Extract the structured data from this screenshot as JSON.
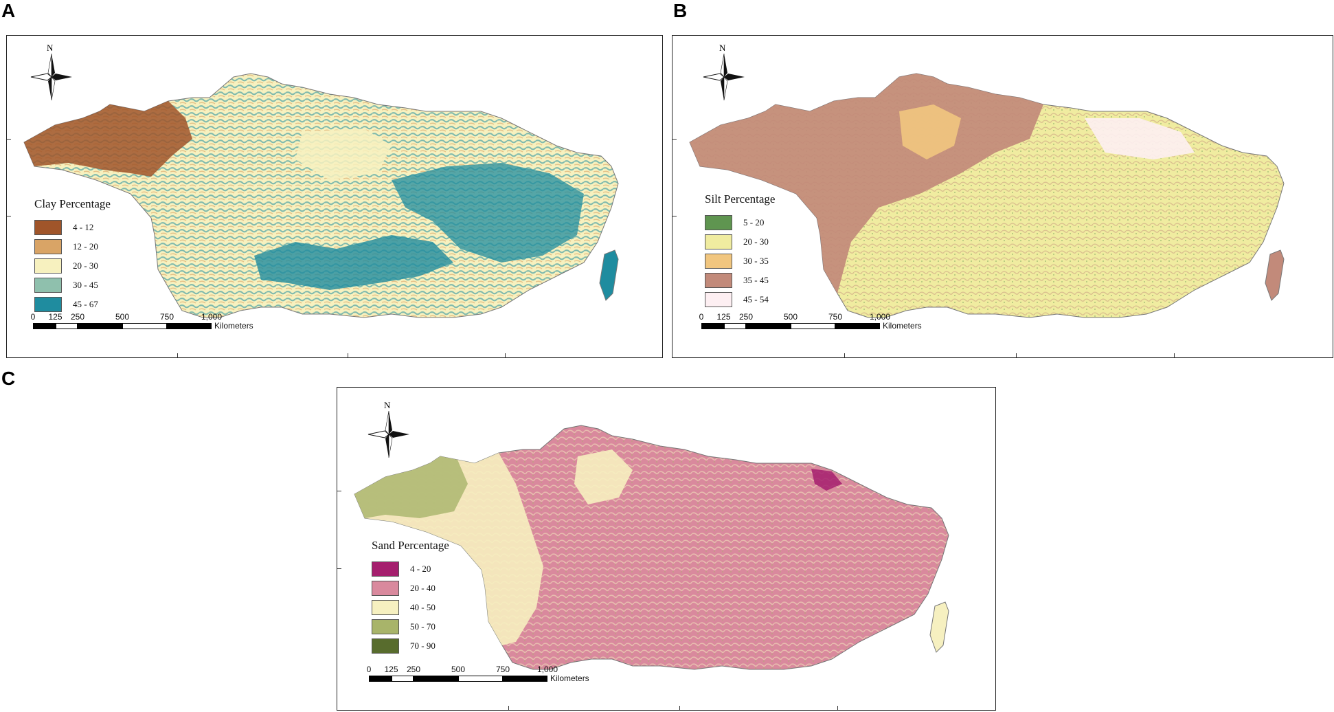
{
  "panels": [
    {
      "letter": "A",
      "north_label": "N",
      "legend_title": "Clay Percentage",
      "classes": [
        {
          "label": "4 - 12",
          "color": "#a0552a"
        },
        {
          "label": "12 - 20",
          "color": "#d9a466"
        },
        {
          "label": "20 - 30",
          "color": "#f7f1bf"
        },
        {
          "label": "30 - 45",
          "color": "#8fc0ad"
        },
        {
          "label": "45 - 67",
          "color": "#1f8c9f"
        }
      ],
      "scale_ticks": [
        "0",
        "125",
        "250",
        "500",
        "750",
        "1,000"
      ],
      "scale_unit": "Kilometers"
    },
    {
      "letter": "B",
      "north_label": "N",
      "legend_title": "Silt Percentage",
      "classes": [
        {
          "label": "5 - 20",
          "color": "#5f9550"
        },
        {
          "label": "20 - 30",
          "color": "#f0eca0"
        },
        {
          "label": "30 - 35",
          "color": "#f1c67f"
        },
        {
          "label": "35 - 45",
          "color": "#c28a7a"
        },
        {
          "label": "45 - 54",
          "color": "#fdeff2"
        }
      ],
      "scale_ticks": [
        "0",
        "125",
        "250",
        "500",
        "750",
        "1,000"
      ],
      "scale_unit": "Kilometers"
    },
    {
      "letter": "C",
      "north_label": "N",
      "legend_title": "Sand Percentage",
      "classes": [
        {
          "label": "4 - 20",
          "color": "#a51f6e"
        },
        {
          "label": "20 - 40",
          "color": "#d9899d"
        },
        {
          "label": "40 - 50",
          "color": "#f6f0c0"
        },
        {
          "label": "50 - 70",
          "color": "#a8b46a"
        },
        {
          "label": "70 - 90",
          "color": "#586c2d"
        }
      ],
      "scale_ticks": [
        "0",
        "125",
        "250",
        "500",
        "750",
        "1,000"
      ],
      "scale_unit": "Kilometers"
    }
  ]
}
